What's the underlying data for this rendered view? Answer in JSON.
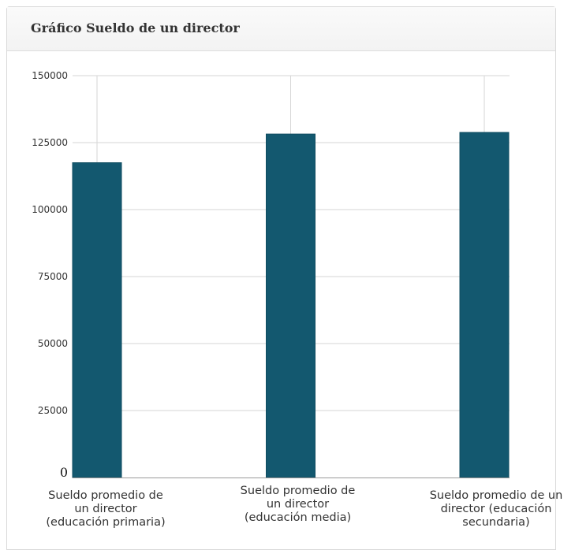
{
  "panel": {
    "title": "Gráfico Sueldo de un director"
  },
  "colors": {
    "bar": "#13586f",
    "grid": "#d6d6d6",
    "axis": "#999999"
  },
  "chart_data": {
    "type": "bar",
    "title": "",
    "xlabel": "",
    "ylabel": "",
    "ylim": [
      0,
      150000
    ],
    "yticks": [
      "0",
      "25000",
      "50000",
      "75000",
      "100000",
      "125000",
      "150000"
    ],
    "grid": true,
    "categories": [
      [
        "Sueldo promedio de",
        "un director",
        "(educación primaria)"
      ],
      [
        "Sueldo promedio de",
        "un director",
        "(educación media)"
      ],
      [
        "Sueldo promedio de un",
        "director (educación",
        "secundaria)"
      ]
    ],
    "values": [
      117500,
      128200,
      128800
    ]
  }
}
